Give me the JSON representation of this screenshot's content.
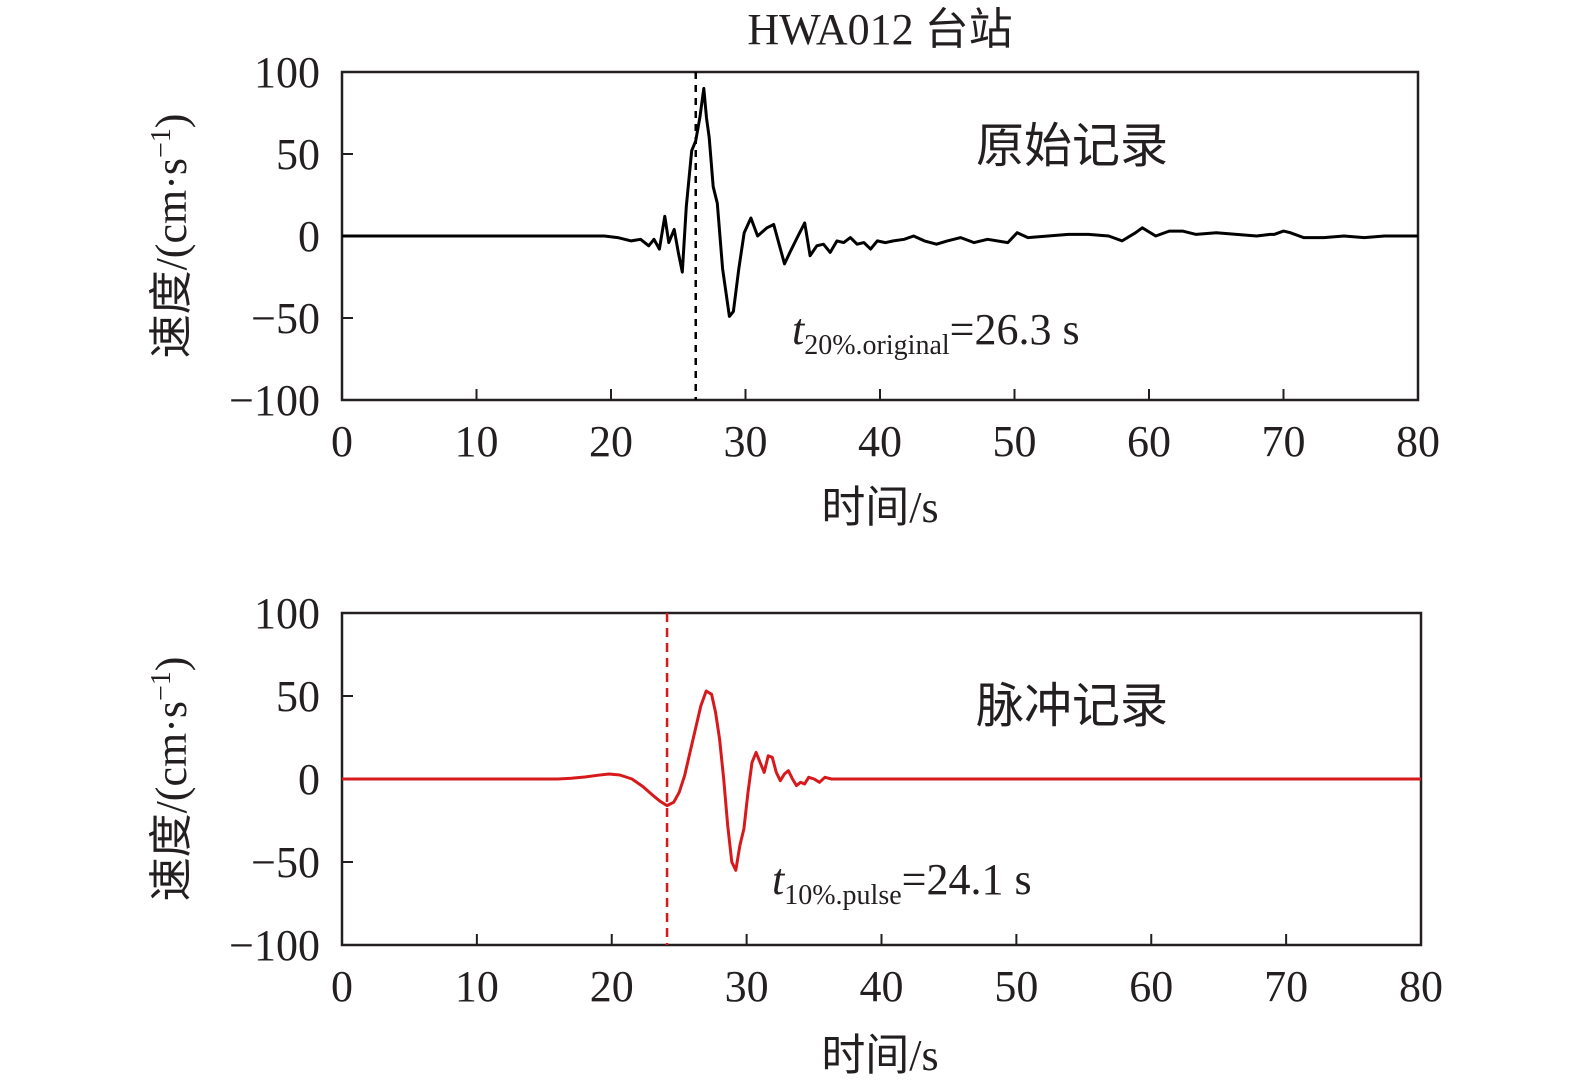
{
  "figure_title": "HWA012 台站",
  "colors": {
    "axis": "#231f20",
    "original_line": "#000000",
    "pulse_line": "#d7191c"
  },
  "chart_data": [
    {
      "type": "line",
      "annotation": "原始记录",
      "xlabel": "时间/s",
      "ylabel": "速度/(cm·s",
      "ylabel_sup": "−1",
      "ylabel_close": ")",
      "xlim": [
        0,
        80
      ],
      "ylim": [
        -100,
        100
      ],
      "xticks": [
        0,
        10,
        20,
        30,
        40,
        50,
        60,
        70,
        80
      ],
      "xtick_labels": [
        "0",
        "10",
        "20",
        "30",
        "40",
        "50",
        "60",
        "70",
        "80"
      ],
      "yticks": [
        100,
        50,
        0,
        -50,
        -100
      ],
      "ytick_labels": [
        "100",
        "50",
        "0",
        "−50",
        "−100"
      ],
      "marker_time": 26.3,
      "marker_label": {
        "symbol": "t",
        "subscript": "20%.original",
        "value": "=26.3 s"
      },
      "series": [
        {
          "color": "#000000",
          "x": [
            0,
            19.5,
            20.5,
            21.5,
            22.2,
            22.8,
            23.2,
            23.6,
            24.0,
            24.3,
            24.7,
            25.0,
            25.3,
            25.6,
            26.0,
            26.3,
            26.6,
            26.9,
            27.1,
            27.3,
            27.6,
            27.9,
            28.3,
            28.8,
            29.1,
            29.5,
            29.9,
            30.4,
            30.9,
            31.6,
            32.1,
            32.5,
            32.9,
            33.3,
            33.9,
            34.4,
            34.8,
            35.3,
            35.8,
            36.3,
            36.8,
            37.3,
            37.8,
            38.3,
            38.8,
            39.3,
            39.8,
            40.4,
            41.0,
            41.8,
            42.5,
            43.3,
            44.2,
            45.0,
            46.0,
            47.0,
            48.0,
            49.5,
            50.2,
            51.0,
            52.5,
            54.0,
            55.5,
            57.0,
            58.0,
            59.0,
            59.5,
            60.5,
            61.5,
            62.5,
            63.5,
            65.0,
            66.5,
            68.0,
            69.0,
            69.3,
            70.0,
            70.5,
            71.5,
            73.0,
            74.5,
            76.0,
            77.5,
            79.0,
            80.0
          ],
          "y": [
            0,
            0,
            -1,
            -3,
            -2,
            -6,
            -2,
            -8,
            12,
            -4,
            4,
            -10,
            -22,
            18,
            52,
            58,
            72,
            90,
            72,
            60,
            30,
            20,
            -20,
            -49,
            -46,
            -20,
            2,
            11,
            0,
            5,
            7,
            -5,
            -17,
            -10,
            0,
            8,
            -12,
            -6,
            -5,
            -10,
            -3,
            -4,
            -1,
            -5,
            -4,
            -8,
            -3,
            -4,
            -3,
            -2,
            0,
            -3,
            -5,
            -3,
            -1,
            -4,
            -2,
            -4,
            2,
            -1,
            0,
            1,
            1,
            0,
            -3,
            2,
            5,
            0,
            3,
            3,
            1,
            2,
            1,
            0,
            1,
            1,
            3,
            2,
            -1,
            -1,
            0,
            -1,
            0,
            0,
            0
          ]
        }
      ]
    },
    {
      "type": "line",
      "annotation": "脉冲记录",
      "xlabel": "时间/s",
      "ylabel": "速度/(cm·s",
      "ylabel_sup": "−1",
      "ylabel_close": ")",
      "xlim": [
        0,
        80
      ],
      "ylim": [
        -100,
        100
      ],
      "xticks": [
        0,
        10,
        20,
        30,
        40,
        50,
        60,
        70,
        80
      ],
      "xtick_labels": [
        "0",
        "10",
        "20",
        "30",
        "40",
        "50",
        "60",
        "70",
        "80"
      ],
      "yticks": [
        100,
        50,
        0,
        -50,
        -100
      ],
      "ytick_labels": [
        "100",
        "50",
        "0",
        "−50",
        "−100"
      ],
      "marker_time": 24.1,
      "marker_label": {
        "symbol": "t",
        "subscript": "10%.pulse",
        "value": "=24.1 s"
      },
      "series": [
        {
          "color": "#d7191c",
          "x": [
            0,
            16.0,
            17.0,
            18.0,
            19.0,
            19.8,
            20.6,
            21.5,
            22.3,
            23.0,
            23.6,
            24.1,
            24.6,
            25.0,
            25.4,
            25.8,
            26.2,
            26.6,
            27.0,
            27.4,
            27.7,
            28.0,
            28.3,
            28.6,
            28.9,
            29.2,
            29.5,
            29.8,
            30.1,
            30.4,
            30.7,
            31.0,
            31.3,
            31.6,
            31.9,
            32.2,
            32.5,
            32.8,
            33.1,
            33.4,
            33.7,
            34.0,
            34.3,
            34.6,
            35.0,
            35.4,
            35.8,
            36.3,
            37.0,
            38.0,
            45.0,
            80.0
          ],
          "y": [
            0,
            0,
            0.5,
            1.2,
            2.3,
            3.0,
            2.4,
            0,
            -4.5,
            -9.5,
            -13.5,
            -16,
            -14,
            -8,
            2,
            16,
            30,
            44,
            53,
            51,
            40,
            24,
            0,
            -28,
            -50,
            -55,
            -40,
            -30,
            -8,
            10,
            16,
            10,
            4,
            14,
            13,
            4,
            -1,
            3,
            5,
            0,
            -4,
            -2,
            -3,
            1,
            0,
            -2,
            1,
            0,
            0,
            0,
            0,
            0
          ]
        }
      ]
    }
  ]
}
